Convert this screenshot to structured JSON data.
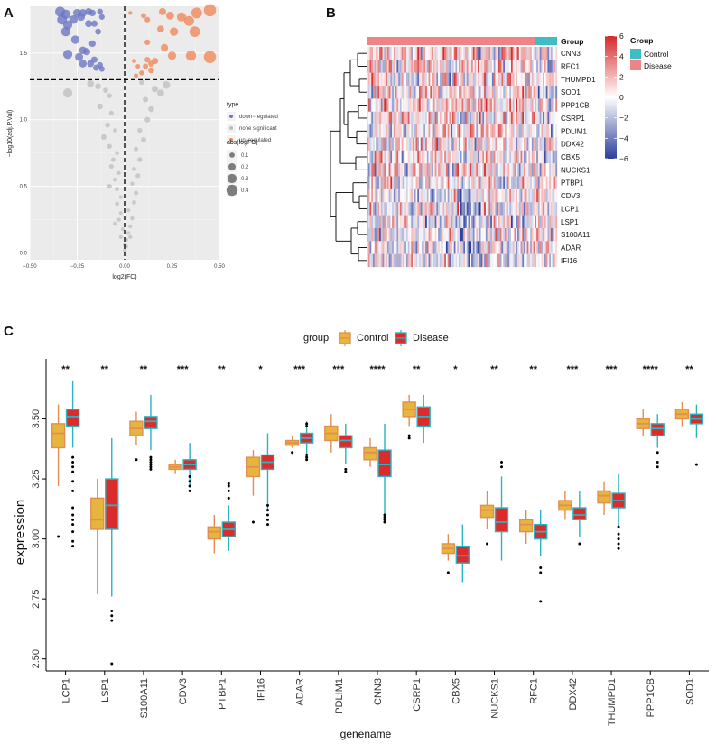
{
  "panels": {
    "a": "A",
    "b": "B",
    "c": "C"
  },
  "chart_data": [
    {
      "panel": "A",
      "type": "scatter",
      "title": "",
      "xlabel": "log2(FC)",
      "ylabel": "−log10(adj.P.Val)",
      "xlim": [
        -0.5,
        0.5
      ],
      "ylim": [
        -0.05,
        1.85
      ],
      "xticks": [
        -0.5,
        -0.25,
        0,
        0.25,
        0.5
      ],
      "xtick_labels": [
        "−0.50",
        "−0.25",
        "0.00",
        "0.25",
        "0.50"
      ],
      "yticks": [
        0,
        0.5,
        1.0,
        1.5
      ],
      "ytick_labels": [
        "0.0",
        "0.5",
        "1.0",
        "1.5"
      ],
      "thresholds": {
        "y": 1.3,
        "x": 0
      },
      "legend_type": {
        "title": "type",
        "entries": [
          "down−regulated",
          "none significant",
          "up−regulated"
        ]
      },
      "legend_size": {
        "title": "abs(logFC)",
        "entries": [
          "0.1",
          "0.2",
          "0.3",
          "0.4"
        ]
      },
      "colors": {
        "down": "#6d77c4",
        "none": "#bdbdbd",
        "up": "#f08a5d",
        "background": "#ebebeb"
      },
      "points": {
        "down": [
          [
            -0.34,
            1.81
          ],
          [
            -0.31,
            1.79
          ],
          [
            -0.27,
            1.75
          ],
          [
            -0.25,
            1.8
          ],
          [
            -0.22,
            1.8
          ],
          [
            -0.19,
            1.81
          ],
          [
            -0.17,
            1.8
          ],
          [
            -0.13,
            1.81
          ],
          [
            -0.12,
            1.77
          ],
          [
            -0.33,
            1.75
          ],
          [
            -0.3,
            1.71
          ],
          [
            -0.23,
            1.77
          ],
          [
            -0.19,
            1.72
          ],
          [
            -0.16,
            1.72
          ],
          [
            -0.14,
            1.66
          ],
          [
            -0.31,
            1.66
          ],
          [
            -0.26,
            1.6
          ],
          [
            -0.17,
            1.57
          ],
          [
            -0.22,
            1.52
          ],
          [
            -0.2,
            1.51
          ],
          [
            -0.3,
            1.49
          ],
          [
            -0.22,
            1.42
          ],
          [
            -0.16,
            1.45
          ],
          [
            -0.15,
            1.39
          ],
          [
            -0.18,
            1.42
          ],
          [
            -0.24,
            1.47
          ],
          [
            -0.13,
            1.41
          ],
          [
            -0.12,
            1.38
          ]
        ],
        "up": [
          [
            0.03,
            1.8
          ],
          [
            0.1,
            1.78
          ],
          [
            0.12,
            1.75
          ],
          [
            0.2,
            1.81
          ],
          [
            0.24,
            1.78
          ],
          [
            0.3,
            1.77
          ],
          [
            0.34,
            1.74
          ],
          [
            0.38,
            1.8
          ],
          [
            0.45,
            1.82
          ],
          [
            0.19,
            1.68
          ],
          [
            0.26,
            1.66
          ],
          [
            0.37,
            1.66
          ],
          [
            0.12,
            1.58
          ],
          [
            0.21,
            1.54
          ],
          [
            0.35,
            1.48
          ],
          [
            0.45,
            1.47
          ],
          [
            0.05,
            1.44
          ],
          [
            0.12,
            1.45
          ],
          [
            0.16,
            1.44
          ],
          [
            0.25,
            1.48
          ],
          [
            0.07,
            1.4
          ],
          [
            0.11,
            1.4
          ],
          [
            0.14,
            1.42
          ],
          [
            0.14,
            1.37
          ],
          [
            0.09,
            1.35
          ],
          [
            0.06,
            1.33
          ]
        ],
        "none": [
          [
            -0.18,
            1.27
          ],
          [
            -0.14,
            1.25
          ],
          [
            -0.1,
            1.22
          ],
          [
            -0.3,
            1.2
          ],
          [
            -0.08,
            1.18
          ],
          [
            -0.13,
            1.1
          ],
          [
            -0.07,
            1.05
          ],
          [
            -0.09,
            0.96
          ],
          [
            -0.05,
            0.92
          ],
          [
            -0.11,
            0.87
          ],
          [
            -0.08,
            0.8
          ],
          [
            -0.04,
            0.75
          ],
          [
            -0.06,
            0.7
          ],
          [
            -0.07,
            0.65
          ],
          [
            -0.03,
            0.6
          ],
          [
            -0.05,
            0.55
          ],
          [
            -0.04,
            0.48
          ],
          [
            -0.02,
            0.42
          ],
          [
            -0.04,
            0.37
          ],
          [
            -0.02,
            0.3
          ],
          [
            -0.03,
            0.25
          ],
          [
            -0.01,
            0.18
          ],
          [
            -0.02,
            0.12
          ],
          [
            0.0,
            0.06
          ],
          [
            0.0,
            0.02
          ],
          [
            -0.05,
            0.22
          ],
          [
            -0.08,
            0.5
          ],
          [
            0.01,
            0.1
          ],
          [
            0.02,
            0.15
          ],
          [
            0.03,
            0.2
          ],
          [
            0.04,
            0.26
          ],
          [
            0.02,
            0.32
          ],
          [
            0.05,
            0.38
          ],
          [
            0.06,
            0.45
          ],
          [
            0.04,
            0.52
          ],
          [
            0.07,
            0.58
          ],
          [
            0.05,
            0.63
          ],
          [
            0.08,
            0.7
          ],
          [
            0.06,
            0.78
          ],
          [
            0.1,
            0.85
          ],
          [
            0.08,
            0.92
          ],
          [
            0.12,
            1.0
          ],
          [
            0.14,
            1.08
          ],
          [
            0.11,
            1.15
          ],
          [
            0.19,
            1.2
          ],
          [
            0.22,
            1.26
          ],
          [
            0.16,
            1.23
          ],
          [
            0.09,
            1.28
          ],
          [
            0.03,
            0.12
          ],
          [
            0.01,
            0.05
          ]
        ]
      }
    },
    {
      "panel": "B",
      "type": "heatmap",
      "title": "",
      "rows": [
        "CNN3",
        "RFC1",
        "THUMPD1",
        "SOD1",
        "PPP1CB",
        "CSRP1",
        "PDLIM1",
        "DDX42",
        "CBX5",
        "NUCKS1",
        "PTBP1",
        "CDV3",
        "LCP1",
        "LSP1",
        "S100A11",
        "ADAR",
        "IFI16"
      ],
      "annotation": {
        "title": "Group",
        "top_label": "Group",
        "levels": [
          "Control",
          "Disease"
        ],
        "colors": {
          "Control": "#3fbdc5",
          "Disease": "#f08484"
        },
        "disease_fraction": 0.88
      },
      "colorbar": {
        "range": [
          -6,
          6
        ],
        "ticks": [
          6,
          4,
          2,
          0,
          -2,
          -4,
          -6
        ],
        "tick_labels": [
          "6",
          "4",
          "2",
          "0",
          "−2",
          "−4",
          "−6"
        ],
        "low": "#2c3e9b",
        "mid": "#ffffff",
        "high": "#d62a2a"
      },
      "row_bias": [
        0.35,
        0.3,
        0.2,
        0.25,
        0.3,
        0.25,
        0.2,
        0.15,
        0.2,
        0.1,
        0.0,
        -0.05,
        -0.15,
        -0.1,
        -0.1,
        -0.05,
        -0.1
      ],
      "dendrogram": {
        "groups": [
          [
            "CNN3",
            "RFC1",
            "THUMPD1",
            "SOD1",
            "PPP1CB",
            "CSRP1",
            "PDLIM1",
            "DDX42",
            "CBX5",
            "NUCKS1"
          ],
          [
            "PTBP1",
            "CDV3",
            "LCP1",
            "LSP1",
            "S100A11",
            "ADAR",
            "IFI16"
          ]
        ]
      }
    },
    {
      "panel": "C",
      "type": "box",
      "title": "",
      "xlabel": "genename",
      "ylabel": "expression",
      "ylim": [
        2.45,
        3.75
      ],
      "yticks": [
        2.5,
        2.75,
        3.0,
        3.25,
        3.5
      ],
      "ytick_labels": [
        "2.50",
        "2.75",
        "3.00",
        "3.25",
        "3.50"
      ],
      "legend": {
        "title": "group",
        "entries": [
          "Control",
          "Disease"
        ]
      },
      "colors": {
        "control_fill": "#e6b53d",
        "control_edge": "#e38e50",
        "disease_fill": "#dd2b2b",
        "disease_edge": "#2ab3c0"
      },
      "categories": [
        "LCP1",
        "LSP1",
        "S100A11",
        "CDV3",
        "PTBP1",
        "IFI16",
        "ADAR",
        "PDLIM1",
        "CNN3",
        "CSRP1",
        "CBX5",
        "NUCKS1",
        "RFC1",
        "DDX42",
        "THUMPD1",
        "PPP1CB",
        "SOD1"
      ],
      "significance": [
        "**",
        "**",
        "**",
        "***",
        "**",
        "*",
        "***",
        "***",
        "****",
        "**",
        "*",
        "**",
        "**",
        "***",
        "***",
        "****",
        "**"
      ],
      "series": [
        {
          "name": "Control",
          "stats": [
            [
              3.22,
              3.38,
              3.44,
              3.48,
              3.56,
              [
                3.01
              ]
            ],
            [
              2.77,
              3.04,
              3.08,
              3.17,
              3.25,
              []
            ],
            [
              3.39,
              3.43,
              3.46,
              3.49,
              3.53,
              [
                3.33
              ]
            ],
            [
              3.27,
              3.29,
              3.3,
              3.31,
              3.33,
              []
            ],
            [
              2.94,
              3.0,
              3.03,
              3.05,
              3.1,
              []
            ],
            [
              3.18,
              3.26,
              3.3,
              3.34,
              3.37,
              [
                3.07
              ]
            ],
            [
              3.38,
              3.39,
              3.4,
              3.41,
              3.43,
              [
                3.36
              ]
            ],
            [
              3.36,
              3.41,
              3.44,
              3.47,
              3.52,
              []
            ],
            [
              3.3,
              3.33,
              3.36,
              3.38,
              3.42,
              []
            ],
            [
              3.47,
              3.51,
              3.54,
              3.57,
              3.6,
              [
                3.43,
                3.42
              ]
            ],
            [
              2.91,
              2.94,
              2.96,
              2.98,
              3.02,
              [
                2.86
              ]
            ],
            [
              3.04,
              3.09,
              3.12,
              3.14,
              3.2,
              [
                2.98
              ]
            ],
            [
              2.98,
              3.03,
              3.06,
              3.08,
              3.12,
              []
            ],
            [
              3.08,
              3.12,
              3.14,
              3.16,
              3.2,
              []
            ],
            [
              3.1,
              3.15,
              3.18,
              3.2,
              3.24,
              []
            ],
            [
              3.43,
              3.46,
              3.48,
              3.5,
              3.54,
              []
            ],
            [
              3.47,
              3.5,
              3.52,
              3.54,
              3.57,
              []
            ]
          ]
        },
        {
          "name": "Disease",
          "stats": [
            [
              3.38,
              3.47,
              3.51,
              3.54,
              3.66,
              [
                3.34,
                3.32,
                3.3,
                3.28,
                3.24,
                3.2,
                3.13,
                3.1,
                3.08,
                3.06,
                3.03,
                2.99,
                2.97
              ]
            ],
            [
              2.76,
              3.04,
              3.14,
              3.25,
              3.42,
              [
                2.7,
                2.68,
                2.66,
                2.48
              ]
            ],
            [
              3.37,
              3.46,
              3.49,
              3.51,
              3.6,
              [
                3.34,
                3.33,
                3.32,
                3.31,
                3.3,
                3.29
              ]
            ],
            [
              3.22,
              3.29,
              3.31,
              3.33,
              3.4,
              [
                3.26,
                3.24,
                3.22,
                3.2
              ]
            ],
            [
              2.95,
              3.01,
              3.04,
              3.07,
              3.14,
              [
                3.23,
                3.22,
                3.2,
                3.17
              ]
            ],
            [
              3.12,
              3.29,
              3.32,
              3.35,
              3.44,
              [
                3.14,
                3.12,
                3.1,
                3.08,
                3.06
              ]
            ],
            [
              3.35,
              3.4,
              3.42,
              3.44,
              3.49,
              [
                3.35,
                3.34,
                3.33,
                3.47,
                3.48
              ]
            ],
            [
              3.31,
              3.38,
              3.41,
              3.43,
              3.48,
              [
                3.29,
                3.28
              ]
            ],
            [
              3.1,
              3.26,
              3.31,
              3.37,
              3.48,
              [
                3.1,
                3.09,
                3.08,
                3.07
              ]
            ],
            [
              3.4,
              3.47,
              3.51,
              3.55,
              3.6,
              []
            ],
            [
              2.82,
              2.9,
              2.93,
              2.97,
              3.06,
              []
            ],
            [
              2.91,
              3.03,
              3.07,
              3.13,
              3.26,
              [
                3.32,
                3.3
              ]
            ],
            [
              2.93,
              3.0,
              3.03,
              3.06,
              3.12,
              [
                2.88,
                2.86,
                2.74
              ]
            ],
            [
              3.01,
              3.08,
              3.1,
              3.13,
              3.2,
              [
                2.98
              ]
            ],
            [
              3.05,
              3.13,
              3.16,
              3.19,
              3.27,
              [
                3.05,
                3.02,
                3.0,
                2.98,
                2.96
              ]
            ],
            [
              3.38,
              3.43,
              3.46,
              3.48,
              3.52,
              [
                3.36,
                3.32,
                3.3
              ]
            ],
            [
              3.42,
              3.48,
              3.5,
              3.52,
              3.56,
              [
                3.31
              ]
            ]
          ]
        }
      ]
    }
  ]
}
